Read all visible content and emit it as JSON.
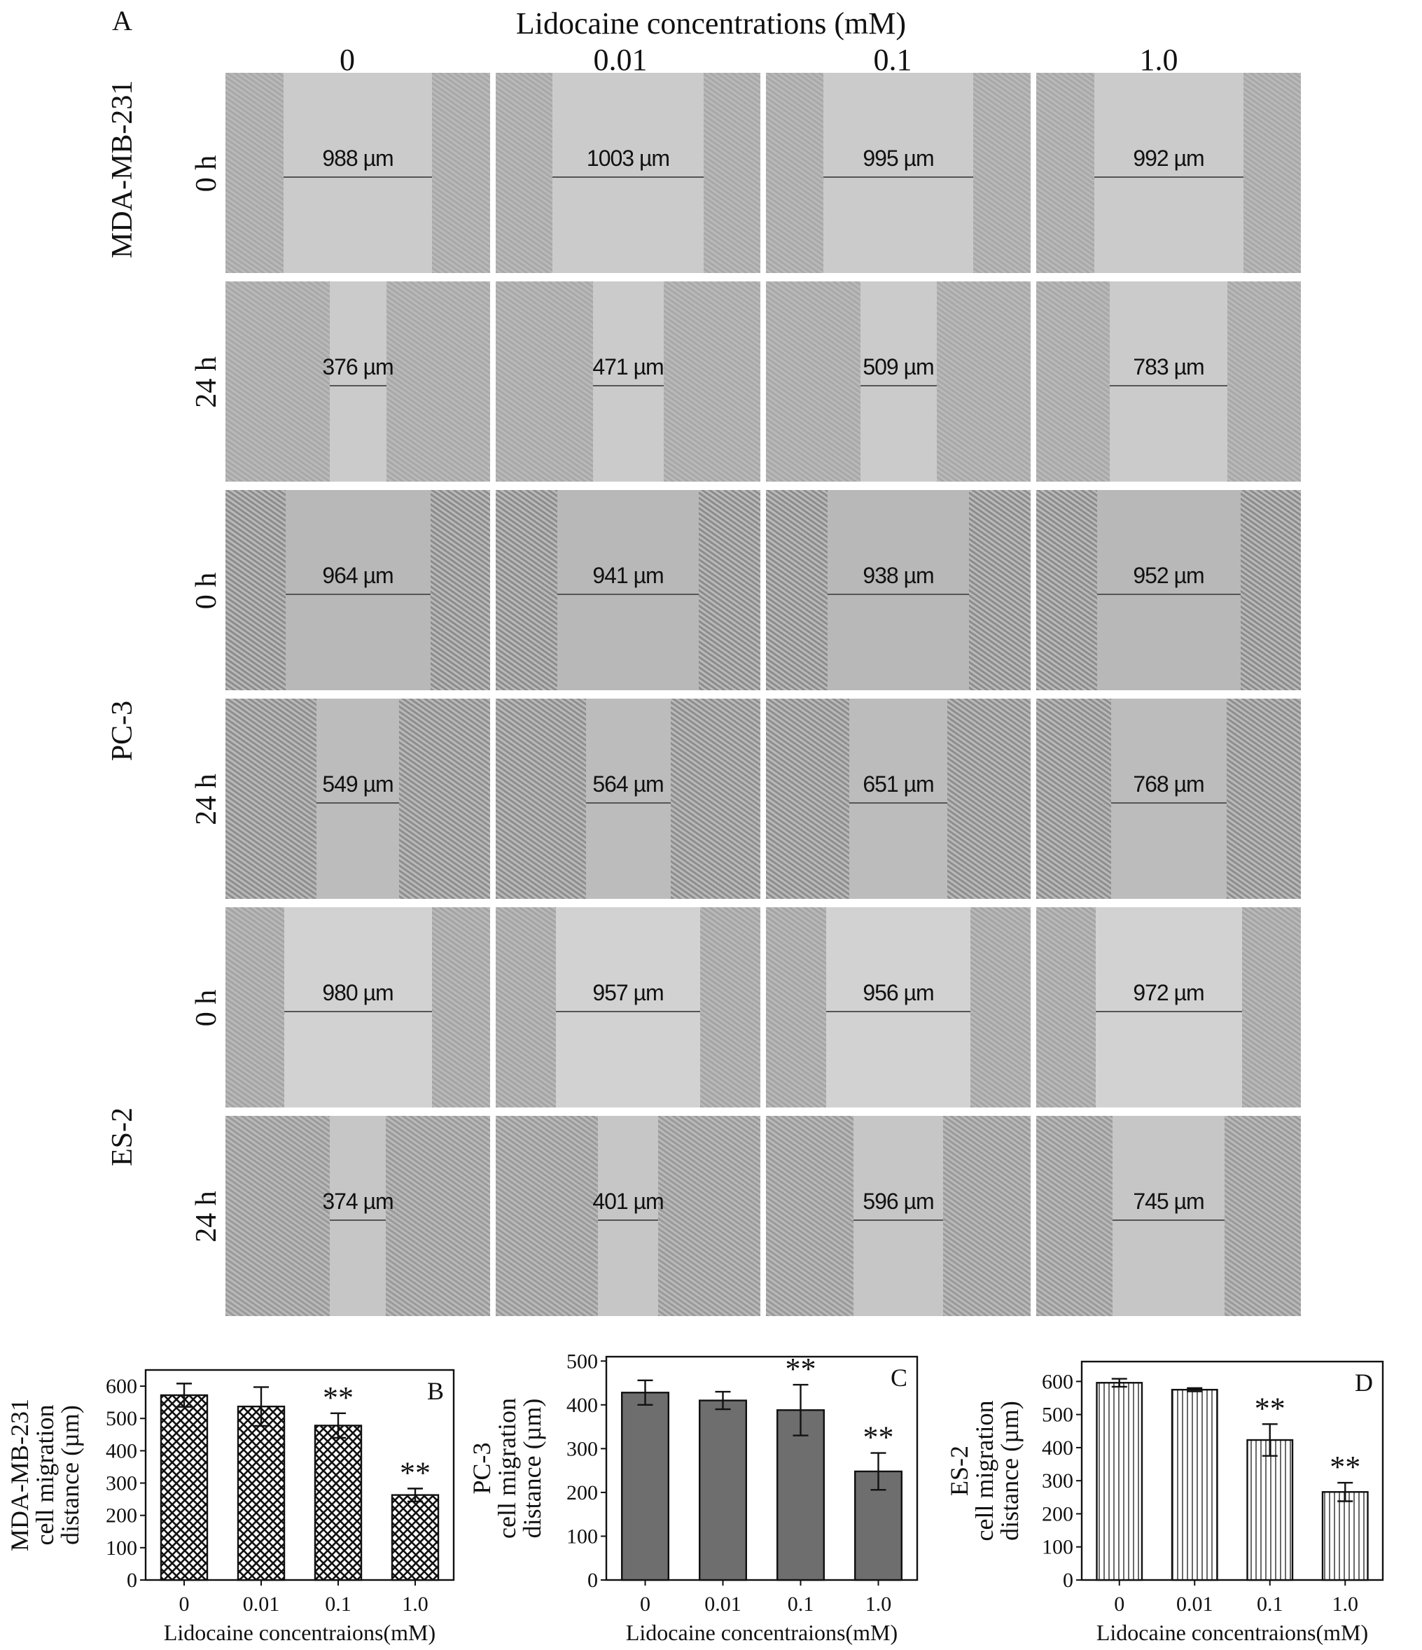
{
  "figure_a": {
    "panel_letter": "A",
    "title": "Lidocaine concentrations (mM)",
    "columns": [
      "0",
      "0.01",
      "0.1",
      "1.0"
    ],
    "cell_lines": [
      "MDA-MB-231",
      "PC-3",
      "ES-2"
    ],
    "times": [
      "0 h",
      "24 h"
    ],
    "rows": [
      {
        "time": "0 h",
        "measurements": [
          "988 µm",
          "1003 µm",
          "995 µm",
          "992 µm"
        ]
      },
      {
        "time": "24 h",
        "measurements": [
          "376 µm",
          "471 µm",
          "509 µm",
          "783 µm"
        ]
      },
      {
        "time": "0 h",
        "measurements": [
          "964 µm",
          "941 µm",
          "938 µm",
          "952 µm"
        ]
      },
      {
        "time": "24 h",
        "measurements": [
          "549 µm",
          "564 µm",
          "651 µm",
          "768 µm"
        ]
      },
      {
        "time": "0 h",
        "measurements": [
          "980 µm",
          "957 µm",
          "956 µm",
          "972 µm"
        ]
      },
      {
        "time": "24 h",
        "measurements": [
          "374 µm",
          "401 µm",
          "596 µm",
          "745 µm"
        ]
      }
    ]
  },
  "chart_data": [
    {
      "type": "bar",
      "panel": "B",
      "categories": [
        "0",
        "0.01",
        "0.1",
        "1.0"
      ],
      "values": [
        572,
        537,
        478,
        263
      ],
      "errors": [
        36,
        60,
        38,
        20
      ],
      "significance": [
        "",
        "",
        "**",
        "**"
      ],
      "ylim": [
        0,
        650
      ],
      "yticks": [
        "0",
        "100",
        "200",
        "300",
        "400",
        "500",
        "600"
      ],
      "ylabel_lines": [
        "MDA-MB-231",
        "cell migration",
        "distance (µm)"
      ],
      "xlabel": "Lidocaine concentraions(mM)",
      "fill": "crosshatch"
    },
    {
      "type": "bar",
      "panel": "C",
      "categories": [
        "0",
        "0.01",
        "0.1",
        "1.0"
      ],
      "values": [
        428,
        410,
        388,
        248
      ],
      "errors": [
        28,
        20,
        58,
        42
      ],
      "significance": [
        "",
        "",
        "**",
        "**"
      ],
      "ylim": [
        0,
        510
      ],
      "yticks": [
        "0",
        "100",
        "200",
        "300",
        "400",
        "500"
      ],
      "ylabel_lines": [
        "PC-3",
        "cell migration",
        "distance (µm)"
      ],
      "xlabel": "Lidocaine concentraions(mM)",
      "fill": "solid",
      "fill_color": "#6e6e6e"
    },
    {
      "type": "bar",
      "panel": "D",
      "categories": [
        "0",
        "0.01",
        "0.1",
        "1.0"
      ],
      "values": [
        596,
        575,
        423,
        266
      ],
      "errors": [
        12,
        5,
        48,
        28
      ],
      "significance": [
        "",
        "",
        "**",
        "**"
      ],
      "ylim": [
        0,
        660
      ],
      "yticks": [
        "0",
        "100",
        "200",
        "300",
        "400",
        "500",
        "600"
      ],
      "ylabel_lines": [
        "ES-2",
        "cell migration",
        "distance (µm)"
      ],
      "xlabel": "Lidocaine concentraions(mM)",
      "fill": "vertical-lines"
    }
  ]
}
